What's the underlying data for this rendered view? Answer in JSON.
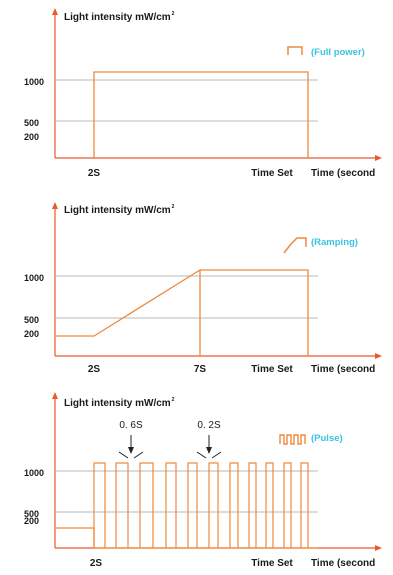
{
  "colors": {
    "axis": "#e8592e",
    "signal": "#ef8a3c",
    "gridline": "#b8b8b8",
    "legend_text": "#3ac4e0"
  },
  "chart_data": [
    {
      "type": "line",
      "ylabel": "Light intensity mW/cm",
      "ylabel_sup": "2",
      "xlabel": "Time (second",
      "legend": "(Full power)",
      "yticks": [
        "1000",
        "500",
        "200"
      ],
      "xticks": [
        "2S",
        "Time Set"
      ],
      "levels": [
        1000,
        500
      ],
      "series": [
        {
          "x": [
            2,
            2,
            20
          ],
          "y": [
            0,
            1000,
            1000
          ]
        }
      ]
    },
    {
      "type": "line",
      "ylabel": "Light intensity mW/cm",
      "ylabel_sup": "2",
      "xlabel": "Time (second",
      "legend": "(Ramping)",
      "yticks": [
        "1000",
        "500",
        "200"
      ],
      "xticks": [
        "2S",
        "7S",
        "Time Set"
      ],
      "levels": [
        1000,
        500
      ],
      "series": [
        {
          "x": [
            0,
            2,
            7,
            7,
            20
          ],
          "y": [
            200,
            200,
            1000,
            0,
            0
          ]
        },
        {
          "x": [
            7,
            20,
            20
          ],
          "y": [
            1000,
            1000,
            0
          ]
        }
      ]
    },
    {
      "type": "line",
      "ylabel": "Light intensity mW/cm",
      "ylabel_sup": "2",
      "xlabel": "Time (second",
      "legend": "(Pulse)",
      "yticks": [
        "1000",
        "500",
        "200"
      ],
      "xticks": [
        "2S",
        "Time Set"
      ],
      "levels": [
        1000,
        500
      ],
      "annotations": [
        "0. 6S",
        "0. 2S"
      ],
      "series": [
        {
          "x": [
            0,
            2
          ],
          "y": [
            200,
            200
          ]
        }
      ]
    }
  ]
}
